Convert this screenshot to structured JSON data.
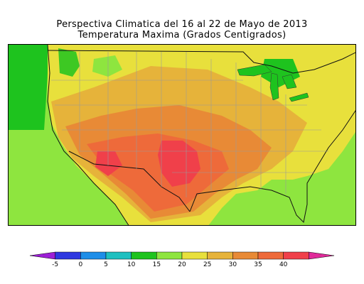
{
  "title": {
    "line1": "Perspectiva Climatica del 16 al 22 de Mayo de 2013",
    "line2": "Temperatura Maxima (Grados Centigrados)"
  },
  "legend": {
    "bins": [
      {
        "color": "#9d1fd6"
      },
      {
        "color": "#2e38e0"
      },
      {
        "color": "#1e8ee8"
      },
      {
        "color": "#1fc0c0"
      },
      {
        "color": "#1ec31e"
      },
      {
        "color": "#8ee53f"
      },
      {
        "color": "#e8e03c"
      },
      {
        "color": "#e6b33a"
      },
      {
        "color": "#e88a36"
      },
      {
        "color": "#ee6a3a"
      },
      {
        "color": "#f0404a"
      },
      {
        "color": "#e02a9a"
      }
    ],
    "ticks": [
      "-5",
      "0",
      "5",
      "10",
      "15",
      "20",
      "25",
      "30",
      "35",
      "40"
    ]
  },
  "map_colors": {
    "ocean": "#8ee53f",
    "cool_green": "#1ec31e",
    "yellow": "#e8e03c",
    "light_orange": "#e6b33a",
    "orange": "#e88a36",
    "dark_orange": "#ee6a3a",
    "red": "#f0404a",
    "lakes": "#1ec31e"
  }
}
